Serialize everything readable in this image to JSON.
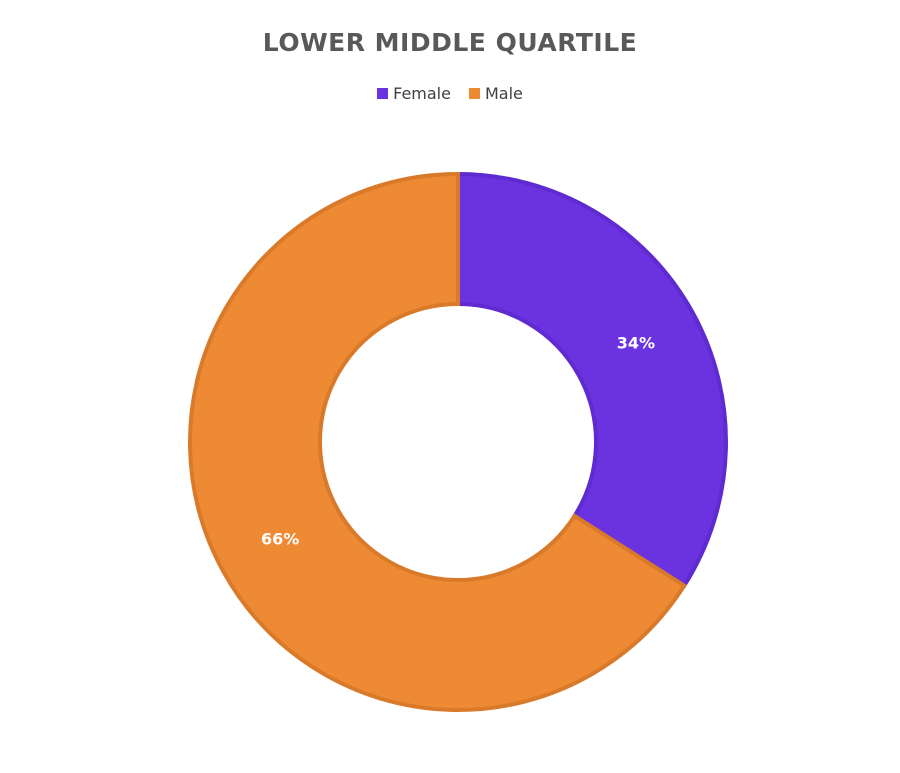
{
  "chart_data": {
    "type": "pie",
    "variant": "donut",
    "title": "LOWER MIDDLE QUARTILE",
    "legend_position": "top",
    "categories": [
      "Female",
      "Male"
    ],
    "values": [
      34,
      66
    ],
    "data_labels": [
      "34%",
      "66%"
    ],
    "colors": [
      "#6b32e0",
      "#ee8a34"
    ],
    "border_colors": [
      "#5f2ad0",
      "#d97a2a"
    ]
  }
}
